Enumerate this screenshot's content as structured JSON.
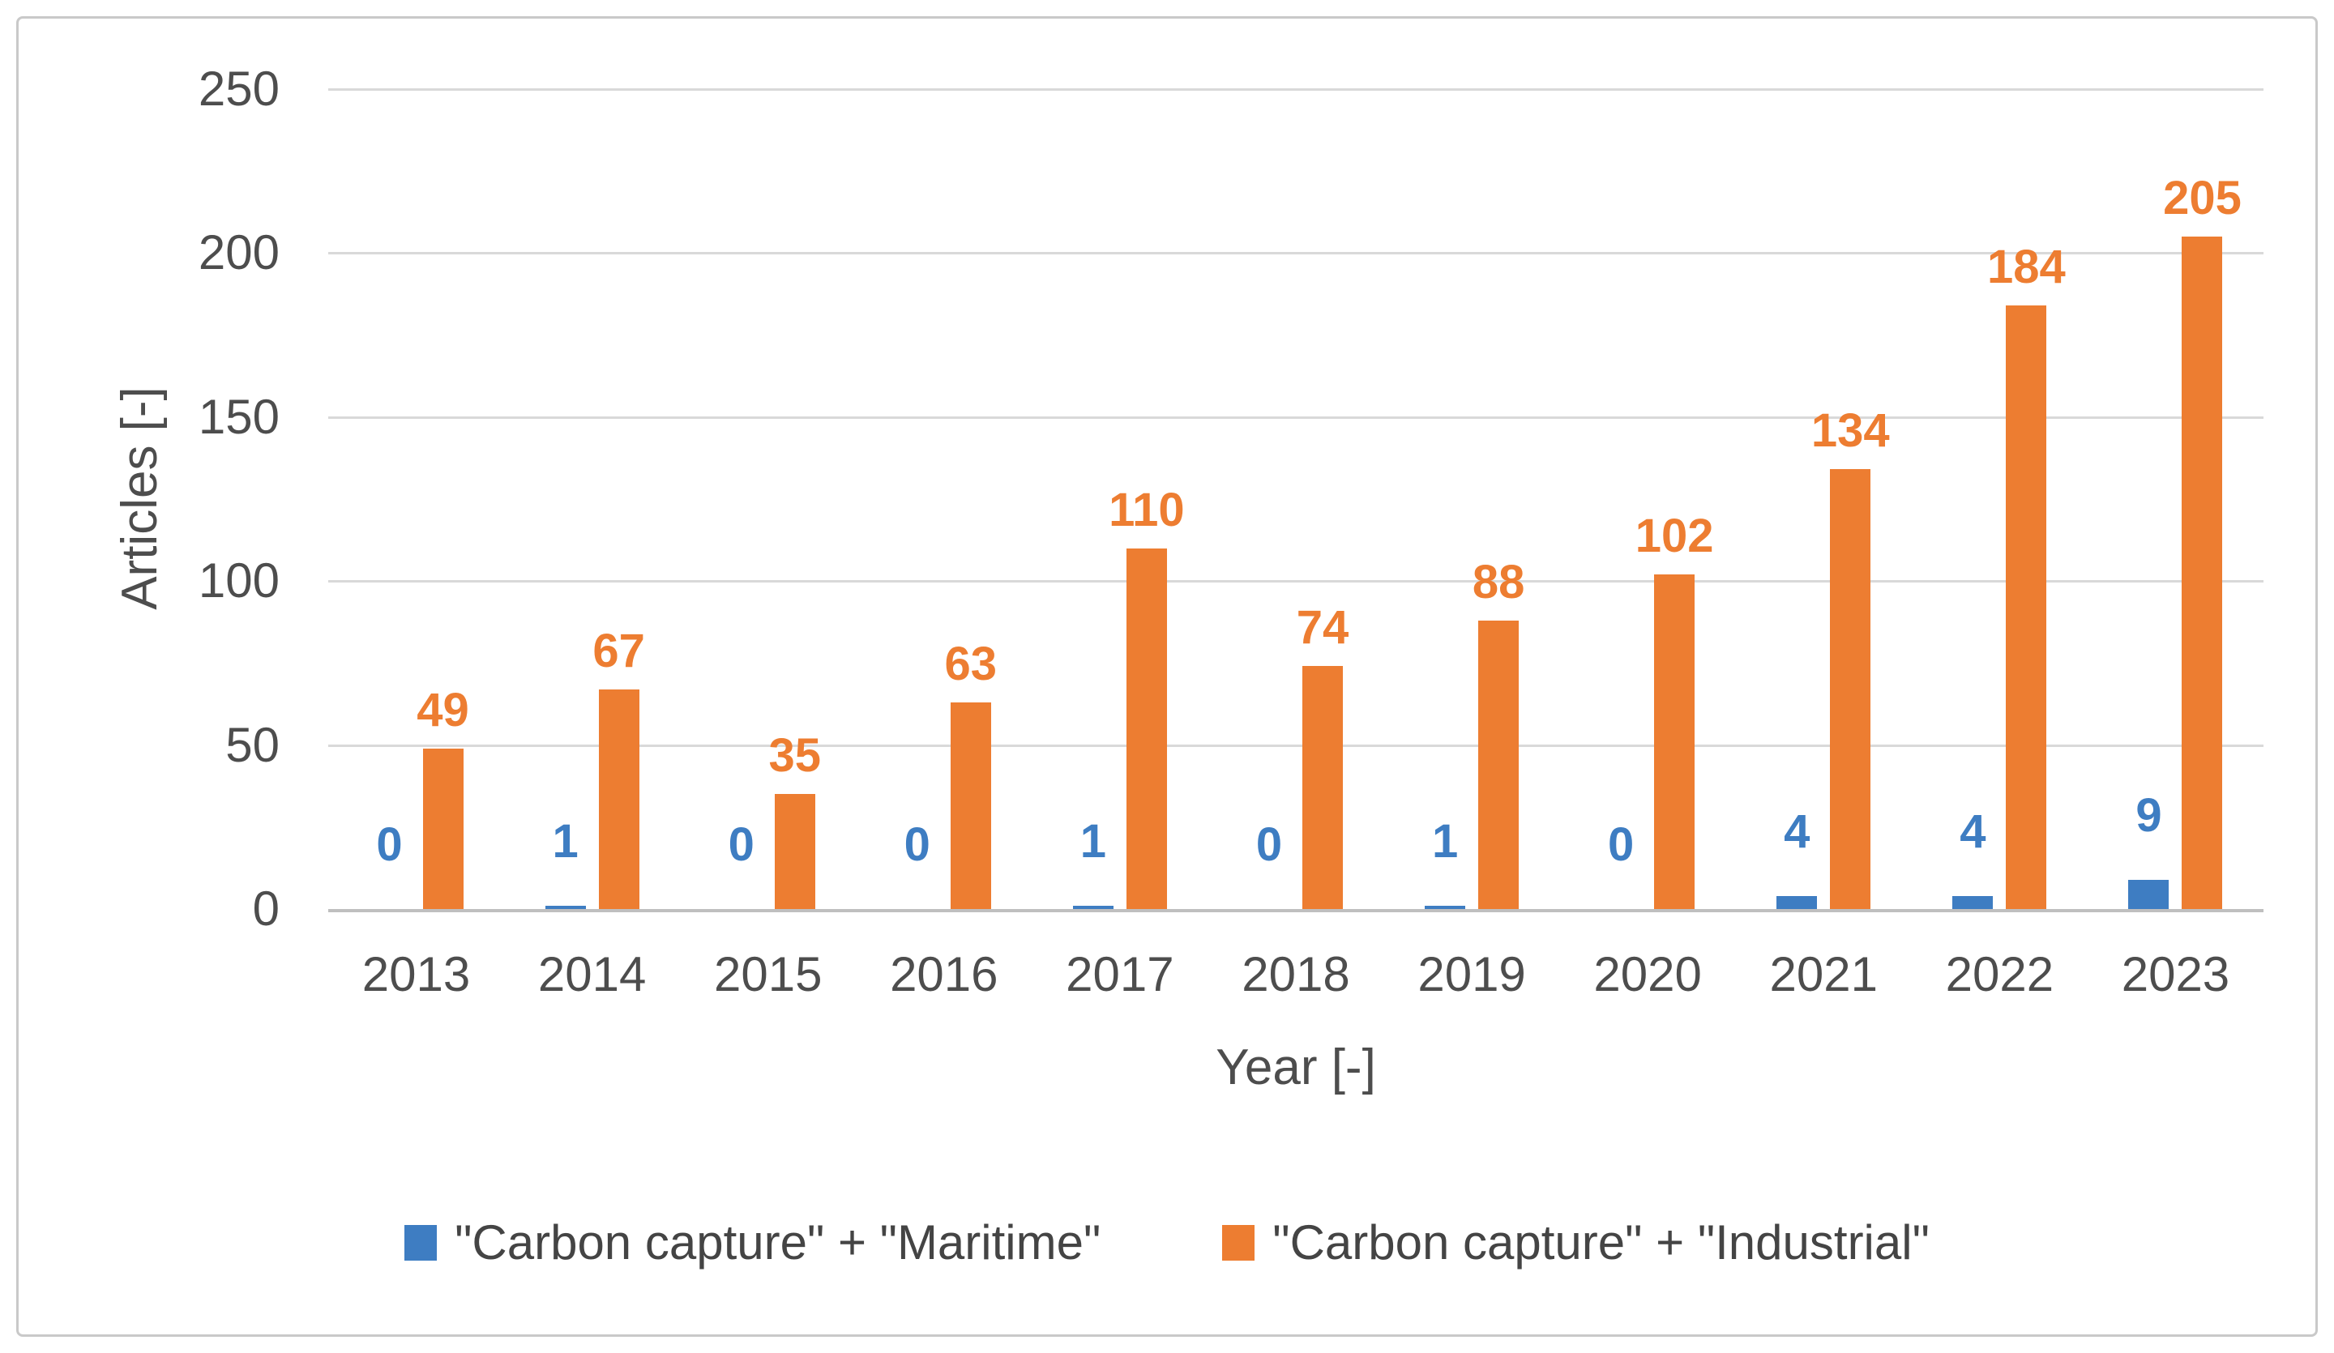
{
  "chart_data": {
    "type": "bar",
    "title": "",
    "xlabel": "Year [-]",
    "ylabel": "Articles [-]",
    "categories": [
      "2013",
      "2014",
      "2015",
      "2016",
      "2017",
      "2018",
      "2019",
      "2020",
      "2021",
      "2022",
      "2023"
    ],
    "series": [
      {
        "name": "\"Carbon capture\" + \"Maritime\"",
        "color": "#3E7DC2",
        "values": [
          0,
          1,
          0,
          0,
          1,
          0,
          1,
          0,
          4,
          4,
          9
        ]
      },
      {
        "name": "\"Carbon capture\" + \"Industrial\"",
        "color": "#ED7D31",
        "values": [
          49,
          67,
          35,
          63,
          110,
          74,
          88,
          102,
          134,
          184,
          205
        ]
      }
    ],
    "ylim": [
      0,
      250
    ],
    "yticks": [
      0,
      50,
      100,
      150,
      200,
      250
    ],
    "grid": true,
    "data_labels": true,
    "legend_position": "bottom"
  },
  "colors": {
    "grid": "#D9D9D9",
    "axis": "#BFBFBF",
    "tick_text": "#4D4D4D",
    "legend_text": "#444444",
    "frame_border": "#C9C9C9"
  }
}
